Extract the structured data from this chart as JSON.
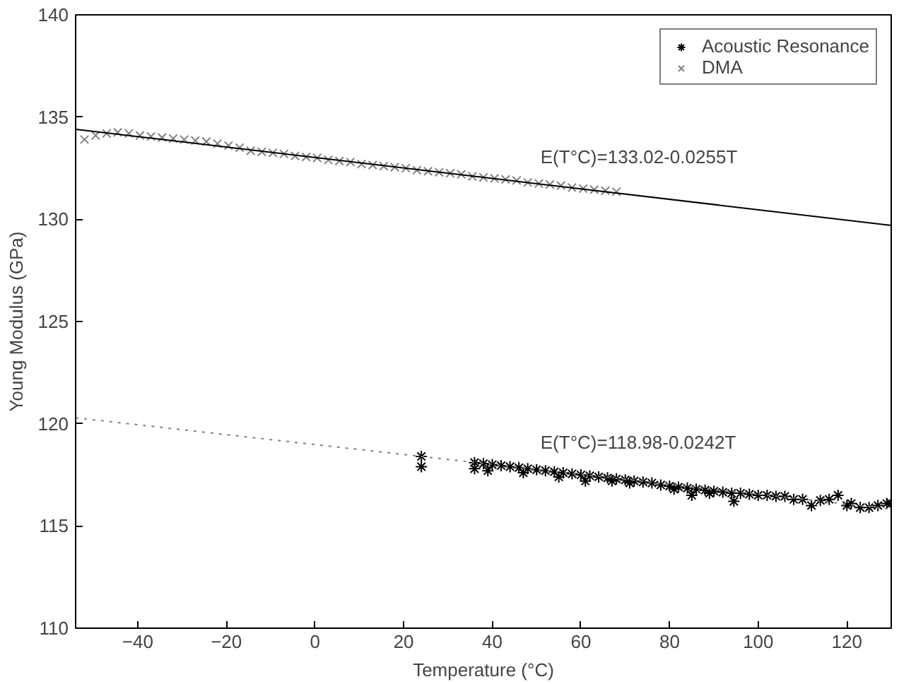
{
  "chart_data": {
    "type": "scatter",
    "xlabel": "Temperature (°C)",
    "ylabel": "Young Modulus (GPa)",
    "xlim": [
      -54,
      130
    ],
    "ylim": [
      110,
      140
    ],
    "xticks": [
      -40,
      -20,
      0,
      20,
      40,
      60,
      80,
      100,
      120
    ],
    "yticks": [
      110,
      115,
      120,
      125,
      130,
      135,
      140
    ],
    "grid": false,
    "legend": "top right",
    "marker": "cross",
    "series": [
      {
        "name": "Acoustic Resonance",
        "color": "#000000",
        "x": [
          24,
          24,
          36,
          36,
          38,
          39,
          40,
          42,
          44,
          46,
          47,
          48,
          50,
          52,
          54,
          55,
          56,
          58,
          60,
          61,
          62,
          64,
          66,
          67,
          68,
          70,
          71,
          72,
          74,
          76,
          78,
          80,
          81,
          82,
          84,
          85,
          86,
          88,
          89,
          90,
          92,
          94,
          94.5,
          96,
          98,
          100,
          102,
          104,
          106,
          108,
          110,
          112,
          114,
          116,
          118,
          120,
          121,
          123,
          125,
          127,
          129,
          130
        ],
        "values": [
          118.4,
          117.9,
          118.1,
          117.8,
          118.05,
          117.7,
          118.0,
          117.95,
          117.9,
          117.85,
          117.6,
          117.8,
          117.75,
          117.7,
          117.65,
          117.4,
          117.6,
          117.55,
          117.5,
          117.2,
          117.45,
          117.4,
          117.35,
          117.2,
          117.3,
          117.25,
          117.1,
          117.2,
          117.15,
          117.1,
          117.0,
          116.95,
          116.8,
          116.9,
          116.85,
          116.5,
          116.8,
          116.75,
          116.6,
          116.7,
          116.65,
          116.6,
          116.2,
          116.6,
          116.55,
          116.5,
          116.5,
          116.45,
          116.45,
          116.3,
          116.3,
          116.0,
          116.25,
          116.3,
          116.5,
          116.0,
          116.1,
          115.9,
          115.9,
          116.0,
          116.1,
          116.1
        ]
      },
      {
        "name": "DMA",
        "color": "#808080",
        "x": [
          -52,
          -49.5,
          -47,
          -44.5,
          -42,
          -39.5,
          -37,
          -34.5,
          -32,
          -29.5,
          -27,
          -24.5,
          -22,
          -19.5,
          -17,
          -14.5,
          -12,
          -9.5,
          -7,
          -4.5,
          -2,
          0.5,
          3,
          5.5,
          8,
          10.5,
          13,
          15.5,
          18,
          20.5,
          23,
          25.5,
          28,
          30.5,
          33,
          35.5,
          38,
          40.5,
          43,
          45.5,
          48,
          50.5,
          53,
          55.5,
          58,
          60.5,
          63,
          65.5,
          68
        ],
        "values": [
          133.9,
          134.1,
          134.2,
          134.25,
          134.2,
          134.1,
          134.05,
          134.0,
          133.95,
          133.9,
          133.85,
          133.8,
          133.7,
          133.6,
          133.5,
          133.35,
          133.3,
          133.25,
          133.2,
          133.1,
          133.05,
          133.0,
          132.9,
          132.85,
          132.8,
          132.7,
          132.65,
          132.6,
          132.55,
          132.5,
          132.4,
          132.35,
          132.3,
          132.25,
          132.2,
          132.1,
          132.05,
          132.0,
          131.95,
          131.9,
          131.8,
          131.75,
          131.7,
          131.65,
          131.55,
          131.5,
          131.45,
          131.4,
          131.35
        ]
      },
      {
        "type": "line",
        "marker": "none",
        "line_style": "solid",
        "color": "#000000",
        "x": [
          -54,
          130
        ],
        "values": [
          134.4,
          129.7
        ]
      },
      {
        "type": "line",
        "marker": "none",
        "line_style": "dotted",
        "color": "#808080",
        "x": [
          -54,
          130
        ],
        "values": [
          120.29,
          115.83
        ]
      }
    ],
    "annotations": [
      "E(T°C)=133.02-0.0255T",
      "E(T°C)=118.98-0.0242T"
    ]
  }
}
